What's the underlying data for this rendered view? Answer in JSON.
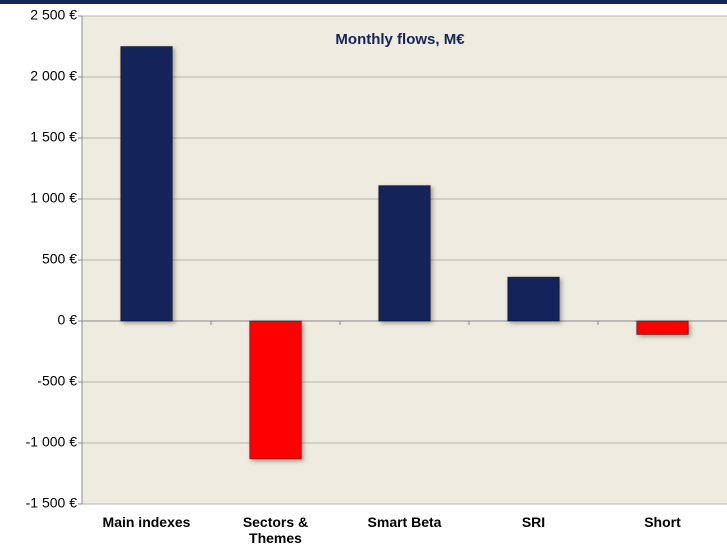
{
  "chart_data": {
    "type": "bar",
    "title": "Monthly flows, M€",
    "categories": [
      "Main indexes",
      "Sectors & Themes",
      "Smart Beta",
      "SRI",
      "Short"
    ],
    "values": [
      2250,
      -1130,
      1110,
      360,
      -110
    ],
    "colors": [
      "#14245a",
      "#ff0000",
      "#14245a",
      "#14245a",
      "#ff0000"
    ],
    "ylim": [
      -1500,
      2500
    ],
    "yticks": [
      {
        "value": -1500,
        "label": "-1 500 €"
      },
      {
        "value": -1000,
        "label": "-1 000 €"
      },
      {
        "value": -500,
        "label": "-500 €"
      },
      {
        "value": 0,
        "label": "0 €"
      },
      {
        "value": 500,
        "label": "500 €"
      },
      {
        "value": 1000,
        "label": "1 000 €"
      },
      {
        "value": 1500,
        "label": "1 500 €"
      },
      {
        "value": 2000,
        "label": "2 000 €"
      },
      {
        "value": 2500,
        "label": "2 500 €"
      }
    ],
    "grid": true
  }
}
